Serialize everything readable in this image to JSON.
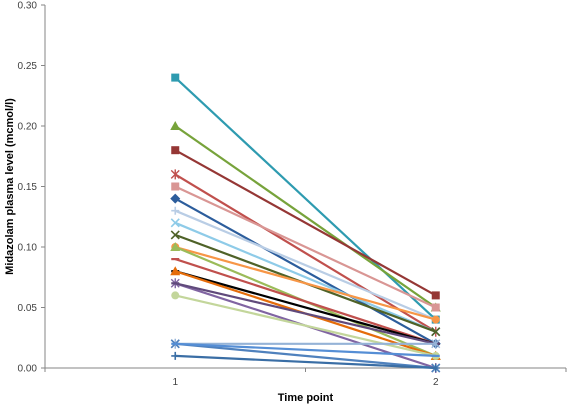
{
  "chart_data": {
    "type": "line",
    "xlabel": "Time point",
    "ylabel": "Midazolam plasma level (mcmol/l)",
    "x": [
      1,
      2
    ],
    "xlim": [
      0.5,
      2.5
    ],
    "ylim": [
      0,
      0.3
    ],
    "yticks": [
      "0.00",
      "0.05",
      "0.10",
      "0.15",
      "0.20",
      "0.25",
      "0.30"
    ],
    "xticks": [
      "1",
      "2"
    ],
    "grid": false,
    "legend": "none",
    "series": [
      {
        "values": [
          0.24,
          0.04
        ],
        "color": "#2e9bb0",
        "marker": "square"
      },
      {
        "values": [
          0.2,
          0.05
        ],
        "color": "#77a33b",
        "marker": "triangle"
      },
      {
        "values": [
          0.18,
          0.06
        ],
        "color": "#953735",
        "marker": "square"
      },
      {
        "values": [
          0.16,
          0.03
        ],
        "color": "#c0504d",
        "marker": "star"
      },
      {
        "values": [
          0.15,
          0.05
        ],
        "color": "#d99694",
        "marker": "square"
      },
      {
        "values": [
          0.14,
          0.02
        ],
        "color": "#2c5d9c",
        "marker": "diamond"
      },
      {
        "values": [
          0.13,
          0.04
        ],
        "color": "#b9cde5",
        "marker": "plus"
      },
      {
        "values": [
          0.12,
          0.03
        ],
        "color": "#8ecbe8",
        "marker": "x"
      },
      {
        "values": [
          0.11,
          0.03
        ],
        "color": "#4f6228",
        "marker": "x"
      },
      {
        "values": [
          0.1,
          0.04
        ],
        "color": "#f79646",
        "marker": "circle"
      },
      {
        "values": [
          0.1,
          0.01
        ],
        "color": "#9bbb59",
        "marker": "triangle"
      },
      {
        "values": [
          0.09,
          0.02
        ],
        "color": "#c0504d",
        "marker": "dash"
      },
      {
        "values": [
          0.08,
          0.02
        ],
        "color": "#000000",
        "marker": "dash"
      },
      {
        "values": [
          0.08,
          0.01
        ],
        "color": "#e46c0a",
        "marker": "triangle"
      },
      {
        "values": [
          0.07,
          0.0
        ],
        "color": "#8064a2",
        "marker": "star"
      },
      {
        "values": [
          0.07,
          0.02
        ],
        "color": "#604a7b",
        "marker": "dash"
      },
      {
        "values": [
          0.06,
          0.01
        ],
        "color": "#c3d69b",
        "marker": "circle"
      },
      {
        "values": [
          0.02,
          0.02
        ],
        "color": "#95b3d7",
        "marker": "star"
      },
      {
        "values": [
          0.02,
          0.0
        ],
        "color": "#4f81bd",
        "marker": "x"
      },
      {
        "values": [
          0.02,
          0.01
        ],
        "color": "#558ed5",
        "marker": "dash"
      },
      {
        "values": [
          0.01,
          0.0
        ],
        "color": "#3a6ea5",
        "marker": "plus"
      }
    ]
  }
}
